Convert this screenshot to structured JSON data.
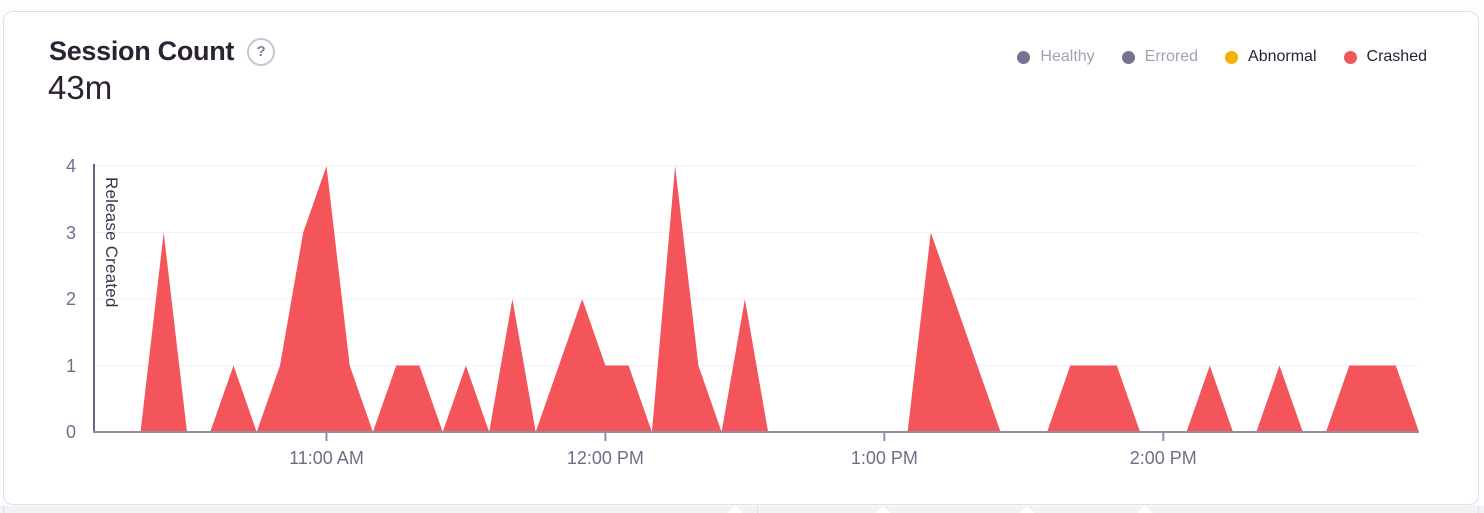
{
  "header": {
    "title": "Session Count",
    "help_icon": "?",
    "total": "43m"
  },
  "legend": {
    "items": [
      {
        "label": "Healthy",
        "color": "#7a7192",
        "enabled": false
      },
      {
        "label": "Errored",
        "color": "#7a7192",
        "enabled": false
      },
      {
        "label": "Abnormal",
        "color": "#f2b200",
        "enabled": true
      },
      {
        "label": "Crashed",
        "color": "#f4555a",
        "enabled": true
      }
    ]
  },
  "chart_data": {
    "type": "area",
    "title": "Session Count",
    "xlabel": "",
    "ylabel": "",
    "ylim": [
      0,
      4
    ],
    "yticks": [
      0,
      1,
      2,
      3,
      4
    ],
    "grid": "horizontal",
    "legend_position": "top-right",
    "x": [
      "10:10 AM",
      "10:15 AM",
      "10:20 AM",
      "10:25 AM",
      "10:30 AM",
      "10:35 AM",
      "10:40 AM",
      "10:45 AM",
      "10:50 AM",
      "10:55 AM",
      "11:00 AM",
      "11:05 AM",
      "11:10 AM",
      "11:15 AM",
      "11:20 AM",
      "11:25 AM",
      "11:30 AM",
      "11:35 AM",
      "11:40 AM",
      "11:45 AM",
      "11:50 AM",
      "11:55 AM",
      "12:00 PM",
      "12:05 PM",
      "12:10 PM",
      "12:15 PM",
      "12:20 PM",
      "12:25 PM",
      "12:30 PM",
      "12:35 PM",
      "12:40 PM",
      "12:45 PM",
      "12:50 PM",
      "12:55 PM",
      "1:00 PM",
      "1:05 PM",
      "1:10 PM",
      "1:15 PM",
      "1:20 PM",
      "1:25 PM",
      "1:30 PM",
      "1:35 PM",
      "1:40 PM",
      "1:45 PM",
      "1:50 PM",
      "1:55 PM",
      "2:00 PM",
      "2:05 PM",
      "2:10 PM",
      "2:15 PM",
      "2:20 PM",
      "2:25 PM",
      "2:30 PM",
      "2:35 PM",
      "2:40 PM",
      "2:45 PM",
      "2:50 PM",
      "2:55 PM"
    ],
    "x_axis_ticks": [
      "11:00 AM",
      "12:00 PM",
      "1:00 PM",
      "2:00 PM"
    ],
    "series": [
      {
        "name": "Crashed",
        "color": "#f4555a",
        "values": [
          0,
          0,
          0,
          3,
          0,
          0,
          1,
          0,
          1,
          3,
          4,
          1,
          0,
          1,
          1,
          0,
          1,
          0,
          2,
          0,
          1,
          2,
          1,
          1,
          0,
          4,
          1,
          0,
          2,
          0,
          0,
          0,
          0,
          0,
          0,
          0,
          3,
          2,
          1,
          0,
          0,
          0,
          1,
          1,
          1,
          0,
          0,
          0,
          1,
          0,
          0,
          1,
          0,
          0,
          1,
          1,
          1,
          0
        ]
      }
    ],
    "annotations": [
      {
        "type": "vline",
        "x": "10:10 AM",
        "label": "Release Created"
      }
    ],
    "axis_colors": {
      "axis_line": "#948ca6",
      "release_line": "#6a6283",
      "gridline": "#f2eff5",
      "tick_label": "#756b88"
    }
  }
}
